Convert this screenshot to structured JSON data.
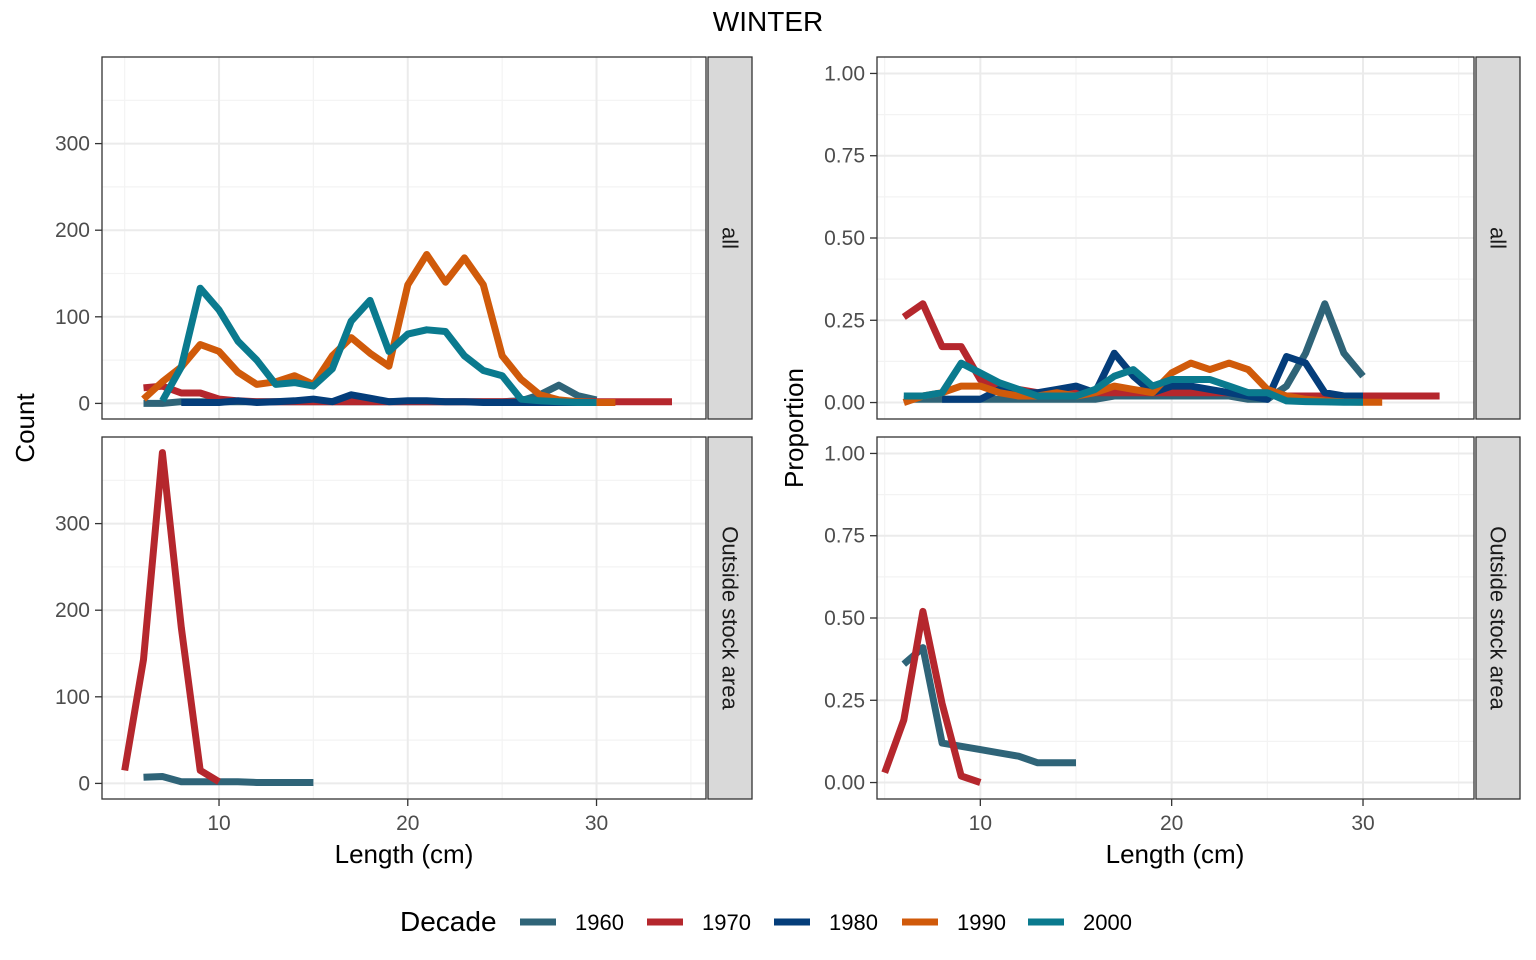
{
  "title": "WINTER",
  "colors": {
    "1960": "#2f6478",
    "1970": "#b5272d",
    "1980": "#043d7a",
    "1990": "#d05a0a",
    "2000": "#0a7a8e",
    "grid_major": "#ebebeb",
    "grid_minor": "#f3f3f3",
    "strip_bg": "#d9d9d9",
    "panel_border": "#333333"
  },
  "legend": {
    "title": "Decade",
    "items": [
      "1960",
      "1970",
      "1980",
      "1990",
      "2000"
    ]
  },
  "chart_data": [
    {
      "type": "line",
      "facet_column": "Count",
      "facet_row": "all",
      "xlabel": "Length (cm)",
      "ylabel": "Count",
      "xlim": [
        3.8,
        35.8
      ],
      "ylim": [
        -18,
        400
      ],
      "x_ticks": [
        10,
        20,
        30
      ],
      "y_ticks": [
        0,
        100,
        200,
        300
      ],
      "series": [
        {
          "name": "1960",
          "x": [
            6,
            7,
            8,
            9,
            10,
            11,
            12,
            13,
            14,
            15,
            16,
            17,
            18,
            19,
            20,
            21,
            22,
            23,
            24,
            25,
            26,
            27,
            28,
            29,
            30
          ],
          "y": [
            0,
            0,
            2,
            2,
            2,
            2,
            2,
            2,
            2,
            2,
            2,
            2,
            2,
            2,
            2,
            2,
            2,
            2,
            2,
            2,
            3,
            10,
            21,
            9,
            4
          ]
        },
        {
          "name": "1970",
          "x": [
            6,
            7,
            8,
            9,
            10,
            11,
            12,
            13,
            14,
            15,
            16,
            17,
            18,
            19,
            20,
            21,
            22,
            23,
            24,
            25,
            26,
            27,
            28,
            29,
            30,
            31,
            32,
            33,
            34
          ],
          "y": [
            18,
            20,
            12,
            12,
            5,
            3,
            2,
            2,
            2,
            2,
            2,
            2,
            2,
            2,
            2,
            2,
            2,
            2,
            2,
            2,
            2,
            2,
            2,
            2,
            2,
            2,
            2,
            2,
            2
          ]
        },
        {
          "name": "1980",
          "x": [
            8,
            9,
            10,
            11,
            12,
            13,
            14,
            15,
            16,
            17,
            18,
            19,
            20,
            21,
            22,
            23,
            24,
            25,
            26,
            27,
            28,
            29,
            30
          ],
          "y": [
            1,
            1,
            1,
            3,
            1,
            2,
            3,
            5,
            2,
            10,
            6,
            2,
            3,
            3,
            2,
            2,
            1,
            1,
            1,
            1,
            1,
            1,
            1
          ]
        },
        {
          "name": "1990",
          "x": [
            6,
            7,
            8,
            9,
            10,
            11,
            12,
            13,
            14,
            15,
            16,
            17,
            18,
            19,
            20,
            21,
            22,
            23,
            24,
            25,
            26,
            27,
            28,
            29,
            30,
            31
          ],
          "y": [
            5,
            25,
            42,
            68,
            60,
            36,
            22,
            25,
            32,
            22,
            55,
            76,
            58,
            43,
            137,
            172,
            140,
            168,
            137,
            55,
            28,
            10,
            4,
            2,
            1,
            1
          ]
        },
        {
          "name": "2000",
          "x": [
            7,
            8,
            9,
            10,
            11,
            12,
            13,
            14,
            15,
            16,
            17,
            18,
            19,
            20,
            21,
            22,
            23,
            24,
            25,
            26,
            27,
            28,
            29,
            30
          ],
          "y": [
            3,
            42,
            133,
            108,
            72,
            50,
            22,
            24,
            20,
            40,
            95,
            119,
            60,
            80,
            85,
            83,
            55,
            38,
            32,
            5,
            3,
            2,
            1,
            1
          ]
        }
      ]
    },
    {
      "type": "line",
      "facet_column": "Count",
      "facet_row": "Outside stock area",
      "xlabel": "Length (cm)",
      "ylabel": "Count",
      "xlim": [
        3.8,
        35.8
      ],
      "ylim": [
        -18,
        400
      ],
      "x_ticks": [
        10,
        20,
        30
      ],
      "y_ticks": [
        0,
        100,
        200,
        300
      ],
      "series": [
        {
          "name": "1960",
          "x": [
            6,
            7,
            8,
            9,
            10,
            11,
            12,
            13,
            14,
            15
          ],
          "y": [
            7,
            8,
            2,
            2,
            2,
            2,
            1,
            1,
            1,
            1
          ]
        },
        {
          "name": "1970",
          "x": [
            5,
            6,
            7,
            8,
            9,
            10
          ],
          "y": [
            15,
            143,
            382,
            180,
            15,
            2
          ]
        }
      ]
    },
    {
      "type": "line",
      "facet_column": "Proportion",
      "facet_row": "all",
      "xlabel": "Length (cm)",
      "ylabel": "Proportion",
      "xlim": [
        4.6,
        35.8
      ],
      "ylim": [
        -0.05,
        1.05
      ],
      "x_ticks": [
        10,
        20,
        30
      ],
      "y_ticks": [
        0.0,
        0.25,
        0.5,
        0.75,
        1.0
      ],
      "y_tick_labels": [
        "0.00",
        "0.25",
        "0.50",
        "0.75",
        "1.00"
      ],
      "series": [
        {
          "name": "1960",
          "x": [
            6,
            7,
            8,
            9,
            10,
            11,
            12,
            13,
            14,
            15,
            16,
            17,
            18,
            19,
            20,
            21,
            22,
            23,
            24,
            25,
            26,
            27,
            28,
            29,
            30
          ],
          "y": [
            0.01,
            0.01,
            0.01,
            0.01,
            0.01,
            0.01,
            0.01,
            0.01,
            0.01,
            0.01,
            0.01,
            0.02,
            0.02,
            0.02,
            0.02,
            0.02,
            0.02,
            0.02,
            0.01,
            0.01,
            0.05,
            0.15,
            0.3,
            0.15,
            0.08
          ]
        },
        {
          "name": "1970",
          "x": [
            6,
            7,
            8,
            9,
            10,
            11,
            12,
            13,
            14,
            15,
            16,
            17,
            18,
            19,
            20,
            21,
            22,
            23,
            24,
            25,
            26,
            27,
            28,
            29,
            30,
            31,
            32,
            33,
            34
          ],
          "y": [
            0.26,
            0.3,
            0.17,
            0.17,
            0.07,
            0.05,
            0.04,
            0.03,
            0.03,
            0.03,
            0.03,
            0.03,
            0.03,
            0.03,
            0.03,
            0.03,
            0.03,
            0.03,
            0.03,
            0.03,
            0.02,
            0.02,
            0.02,
            0.02,
            0.02,
            0.02,
            0.02,
            0.02,
            0.02
          ]
        },
        {
          "name": "1980",
          "x": [
            8,
            9,
            10,
            11,
            12,
            13,
            14,
            15,
            16,
            17,
            18,
            19,
            20,
            21,
            22,
            23,
            24,
            25,
            26,
            27,
            28,
            29,
            30
          ],
          "y": [
            0.01,
            0.01,
            0.01,
            0.04,
            0.03,
            0.03,
            0.04,
            0.05,
            0.03,
            0.15,
            0.08,
            0.03,
            0.05,
            0.05,
            0.04,
            0.03,
            0.02,
            0.01,
            0.14,
            0.12,
            0.03,
            0.02,
            0.02
          ]
        },
        {
          "name": "1990",
          "x": [
            6,
            7,
            8,
            9,
            10,
            11,
            12,
            13,
            14,
            15,
            16,
            17,
            18,
            19,
            20,
            21,
            22,
            23,
            24,
            25,
            26,
            27,
            28,
            29,
            30,
            31
          ],
          "y": [
            0.0,
            0.02,
            0.03,
            0.05,
            0.05,
            0.03,
            0.02,
            0.02,
            0.03,
            0.02,
            0.03,
            0.05,
            0.04,
            0.03,
            0.09,
            0.12,
            0.1,
            0.12,
            0.1,
            0.04,
            0.02,
            0.01,
            0.005,
            0.002,
            0.001,
            0.001
          ]
        },
        {
          "name": "2000",
          "x": [
            6,
            7,
            8,
            9,
            10,
            11,
            12,
            13,
            14,
            15,
            16,
            17,
            18,
            19,
            20,
            21,
            22,
            23,
            24,
            25,
            26,
            27,
            28,
            29,
            30
          ],
          "y": [
            0.02,
            0.02,
            0.03,
            0.12,
            0.09,
            0.06,
            0.04,
            0.02,
            0.02,
            0.02,
            0.04,
            0.08,
            0.1,
            0.05,
            0.07,
            0.07,
            0.07,
            0.05,
            0.03,
            0.03,
            0.005,
            0.003,
            0.002,
            0.001,
            0.001
          ]
        }
      ]
    },
    {
      "type": "line",
      "facet_column": "Proportion",
      "facet_row": "Outside stock area",
      "xlabel": "Length (cm)",
      "ylabel": "Proportion",
      "xlim": [
        4.6,
        35.8
      ],
      "ylim": [
        -0.05,
        1.05
      ],
      "x_ticks": [
        10,
        20,
        30
      ],
      "y_ticks": [
        0.0,
        0.25,
        0.5,
        0.75,
        1.0
      ],
      "y_tick_labels": [
        "0.00",
        "0.25",
        "0.50",
        "0.75",
        "1.00"
      ],
      "series": [
        {
          "name": "1960",
          "x": [
            6,
            7,
            8,
            9,
            10,
            11,
            12,
            13,
            14,
            15
          ],
          "y": [
            0.36,
            0.41,
            0.12,
            0.11,
            0.1,
            0.09,
            0.08,
            0.06,
            0.06,
            0.06
          ]
        },
        {
          "name": "1970",
          "x": [
            5,
            6,
            7,
            8,
            9,
            10
          ],
          "y": [
            0.03,
            0.19,
            0.52,
            0.24,
            0.02,
            0.0
          ]
        }
      ]
    }
  ]
}
